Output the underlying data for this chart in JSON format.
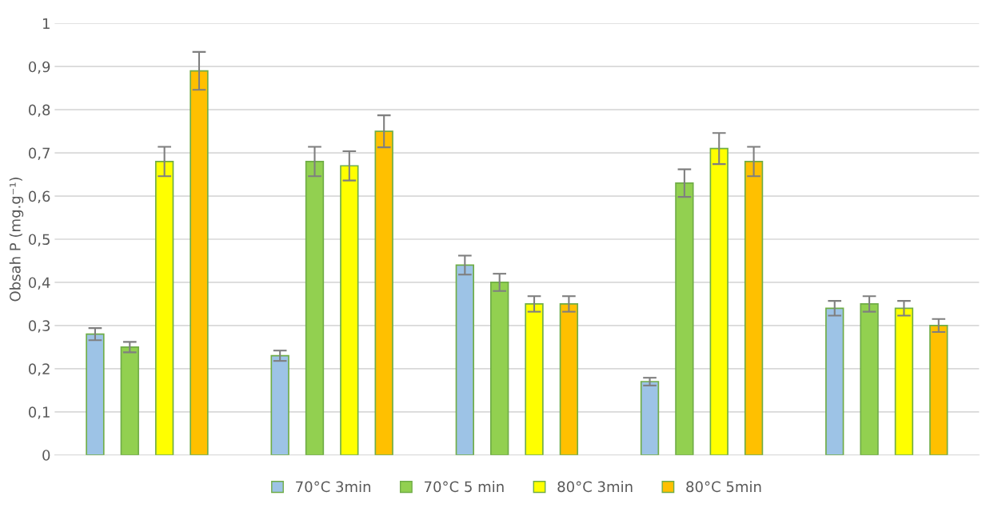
{
  "chart_data": {
    "type": "bar",
    "ylabel": "Obsah P (mg.g⁻¹)",
    "categories": [
      null,
      null,
      null,
      null,
      null
    ],
    "series": [
      {
        "name": "70°C 3min",
        "color": "#9dc3e6",
        "values": [
          0.28,
          0.23,
          0.44,
          0.17,
          0.34
        ],
        "errors": [
          0.014,
          0.012,
          0.022,
          0.009,
          0.017
        ]
      },
      {
        "name": "70°C 5 min",
        "color": "#92d050",
        "values": [
          0.25,
          0.68,
          0.4,
          0.63,
          0.35
        ],
        "errors": [
          0.012,
          0.034,
          0.02,
          0.032,
          0.018
        ]
      },
      {
        "name": "80°C 3min",
        "color": "#ffff00",
        "values": [
          0.68,
          0.67,
          0.35,
          0.71,
          0.34
        ],
        "errors": [
          0.034,
          0.034,
          0.018,
          0.036,
          0.017
        ]
      },
      {
        "name": "80°C 5min",
        "color": "#ffc000",
        "values": [
          0.89,
          0.75,
          0.35,
          0.68,
          0.3
        ],
        "errors": [
          0.044,
          0.037,
          0.018,
          0.034,
          0.015
        ]
      }
    ],
    "ylim": [
      0,
      1
    ],
    "yticks": [
      0,
      {
        "value": 0.1,
        "label": "0,1"
      },
      {
        "value": 0.2,
        "label": "0,2"
      },
      {
        "value": 0.3,
        "label": "0,3"
      },
      {
        "value": 0.4,
        "label": "0,4"
      },
      {
        "value": 0.5,
        "label": "0,5"
      },
      {
        "value": 0.6,
        "label": "0,6"
      },
      {
        "value": 0.7,
        "label": "0,7"
      },
      {
        "value": 0.8,
        "label": "0,8"
      },
      {
        "value": 0.9,
        "label": "0,9"
      },
      1
    ],
    "grid": "y",
    "legend": "bottom"
  }
}
